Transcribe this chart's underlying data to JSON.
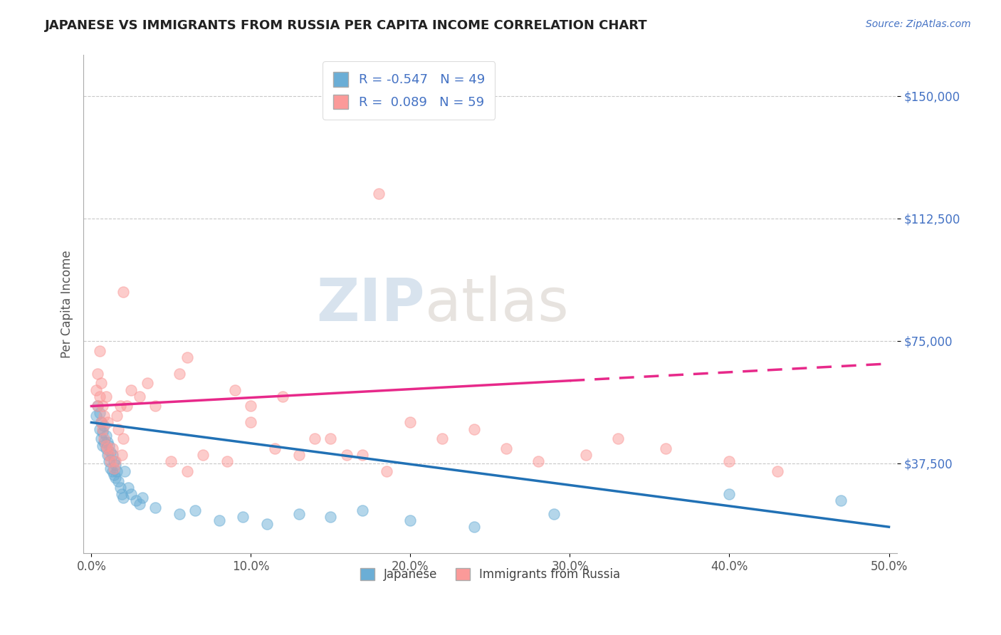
{
  "title": "JAPANESE VS IMMIGRANTS FROM RUSSIA PER CAPITA INCOME CORRELATION CHART",
  "source": "Source: ZipAtlas.com",
  "ylabel": "Per Capita Income",
  "xlim": [
    -0.005,
    0.505
  ],
  "ylim": [
    10000,
    162500
  ],
  "yticks": [
    37500,
    75000,
    112500,
    150000
  ],
  "ytick_labels": [
    "$37,500",
    "$75,000",
    "$112,500",
    "$150,000"
  ],
  "xtick_labels": [
    "0.0%",
    "10.0%",
    "20.0%",
    "30.0%",
    "40.0%",
    "50.0%"
  ],
  "xticks": [
    0.0,
    0.1,
    0.2,
    0.3,
    0.4,
    0.5
  ],
  "legend_R1": "-0.547",
  "legend_N1": "49",
  "legend_R2": "0.089",
  "legend_N2": "59",
  "color_japanese": "#6baed6",
  "color_russia": "#fb9a99",
  "color_line_japanese": "#2171b5",
  "color_line_russia": "#e7298a",
  "background_color": "#ffffff",
  "grid_color": "#c8c8c8",
  "japanese_x": [
    0.003,
    0.004,
    0.005,
    0.005,
    0.006,
    0.006,
    0.007,
    0.007,
    0.008,
    0.008,
    0.009,
    0.009,
    0.01,
    0.01,
    0.011,
    0.011,
    0.012,
    0.012,
    0.013,
    0.013,
    0.014,
    0.014,
    0.015,
    0.015,
    0.016,
    0.017,
    0.018,
    0.019,
    0.02,
    0.021,
    0.023,
    0.025,
    0.028,
    0.03,
    0.032,
    0.04,
    0.055,
    0.065,
    0.08,
    0.095,
    0.11,
    0.13,
    0.15,
    0.17,
    0.2,
    0.24,
    0.29,
    0.4,
    0.47
  ],
  "japanese_y": [
    52000,
    55000,
    48000,
    53000,
    45000,
    50000,
    43000,
    47000,
    44000,
    49000,
    42000,
    46000,
    40000,
    44000,
    38000,
    43000,
    36000,
    41000,
    35000,
    40000,
    34000,
    38000,
    33000,
    37000,
    35000,
    32000,
    30000,
    28000,
    27000,
    35000,
    30000,
    28000,
    26000,
    25000,
    27000,
    24000,
    22000,
    23000,
    20000,
    21000,
    19000,
    22000,
    21000,
    23000,
    20000,
    18000,
    22000,
    28000,
    26000
  ],
  "russia_x": [
    0.003,
    0.004,
    0.004,
    0.005,
    0.005,
    0.006,
    0.006,
    0.007,
    0.007,
    0.008,
    0.008,
    0.009,
    0.009,
    0.01,
    0.01,
    0.011,
    0.012,
    0.013,
    0.014,
    0.015,
    0.016,
    0.017,
    0.018,
    0.019,
    0.02,
    0.022,
    0.025,
    0.03,
    0.035,
    0.04,
    0.05,
    0.06,
    0.07,
    0.085,
    0.1,
    0.115,
    0.13,
    0.15,
    0.17,
    0.185,
    0.2,
    0.22,
    0.24,
    0.26,
    0.28,
    0.31,
    0.33,
    0.36,
    0.4,
    0.43,
    0.18,
    0.02,
    0.06,
    0.1,
    0.12,
    0.14,
    0.16,
    0.055,
    0.09
  ],
  "russia_y": [
    60000,
    55000,
    65000,
    58000,
    72000,
    50000,
    62000,
    48000,
    55000,
    45000,
    52000,
    43000,
    58000,
    42000,
    50000,
    40000,
    38000,
    42000,
    36000,
    38000,
    52000,
    48000,
    55000,
    40000,
    45000,
    55000,
    60000,
    58000,
    62000,
    55000,
    38000,
    35000,
    40000,
    38000,
    50000,
    42000,
    40000,
    45000,
    40000,
    35000,
    50000,
    45000,
    48000,
    42000,
    38000,
    40000,
    45000,
    42000,
    38000,
    35000,
    120000,
    90000,
    70000,
    55000,
    58000,
    45000,
    40000,
    65000,
    60000
  ],
  "line_j_x0": 0.0,
  "line_j_y0": 50000,
  "line_j_x1": 0.5,
  "line_j_y1": 18000,
  "line_r_x0": 0.0,
  "line_r_y0": 55000,
  "line_r_x1": 0.5,
  "line_r_y1": 68000,
  "line_r_solid_end": 0.3,
  "watermark_zip": "ZIP",
  "watermark_atlas": "atlas"
}
